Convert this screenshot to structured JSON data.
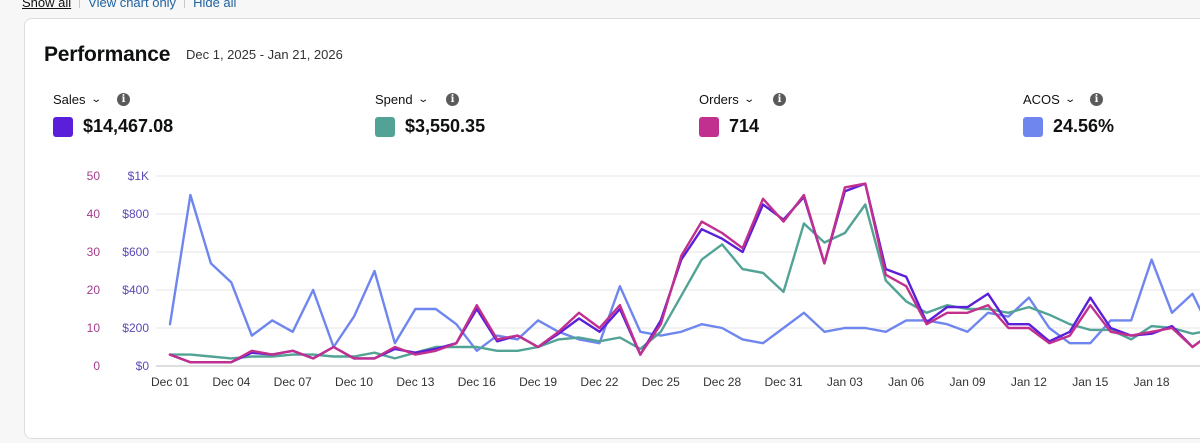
{
  "toolbar": {
    "show_all": "Show all",
    "view_chart_only": "View chart only",
    "hide_all": "Hide all"
  },
  "performance": {
    "title": "Performance",
    "date_range": "Dec 1, 2025 - Jan 21, 2026",
    "metrics": [
      {
        "label": "Sales",
        "value": "$14,467.08",
        "color": "#5c1fd9",
        "icon": "chevron-down-icon"
      },
      {
        "label": "Spend",
        "value": "$3,550.35",
        "color": "#52a396",
        "icon": "chevron-down-icon"
      },
      {
        "label": "Orders",
        "value": "714",
        "color": "#c1308f",
        "icon": "chevron-down-icon"
      },
      {
        "label": "ACOS",
        "value": "24.56%",
        "color": "#6f86ee",
        "icon": "chevron-down-icon"
      }
    ],
    "info_icon": "info-icon"
  },
  "chart_data": {
    "type": "line",
    "x_tick_labels": [
      "Dec 01",
      "Dec 04",
      "Dec 07",
      "Dec 10",
      "Dec 13",
      "Dec 16",
      "Dec 19",
      "Dec 22",
      "Dec 25",
      "Dec 28",
      "Dec 31",
      "Jan 03",
      "Jan 06",
      "Jan 09",
      "Jan 12",
      "Jan 15",
      "Jan 18"
    ],
    "x_start": "2025-12-01",
    "n_points": 52,
    "left_axis": {
      "ticks": [
        "0",
        "10",
        "20",
        "30",
        "40",
        "50"
      ],
      "ylim": [
        0,
        50
      ],
      "series": "Orders"
    },
    "right_axis": {
      "ticks": [
        "$0",
        "$200",
        "$400",
        "$600",
        "$800",
        "$1K"
      ],
      "ylim": [
        0,
        1000
      ],
      "series": "Sales"
    },
    "grid": true,
    "series": [
      {
        "name": "Sales",
        "axis": "right",
        "color": "#5c1fd9",
        "values": [
          60,
          20,
          20,
          20,
          70,
          60,
          80,
          40,
          100,
          40,
          40,
          90,
          70,
          90,
          120,
          300,
          130,
          160,
          100,
          170,
          250,
          180,
          300,
          60,
          240,
          560,
          720,
          670,
          600,
          850,
          770,
          890,
          540,
          920,
          960,
          510,
          470,
          230,
          310,
          310,
          380,
          220,
          220,
          130,
          180,
          360,
          200,
          160,
          170,
          210,
          100,
          180
        ]
      },
      {
        "name": "Spend",
        "axis": "right",
        "color": "#52a396",
        "values": [
          60,
          60,
          50,
          40,
          50,
          50,
          60,
          60,
          50,
          50,
          70,
          40,
          70,
          100,
          100,
          100,
          80,
          80,
          100,
          140,
          150,
          130,
          150,
          90,
          180,
          370,
          560,
          640,
          510,
          490,
          390,
          750,
          650,
          700,
          850,
          450,
          340,
          280,
          320,
          300,
          300,
          280,
          310,
          270,
          220,
          190,
          190,
          140,
          210,
          200,
          170,
          190
        ]
      },
      {
        "name": "Orders",
        "axis": "left",
        "color": "#c1308f",
        "values": [
          3,
          1,
          1,
          1,
          4,
          3,
          4,
          2,
          5,
          2,
          2,
          5,
          3,
          4,
          6,
          16,
          7,
          8,
          5,
          9,
          14,
          10,
          16,
          3,
          11,
          29,
          38,
          35,
          31,
          44,
          38,
          45,
          27,
          47,
          48,
          24,
          21,
          11,
          14,
          14,
          16,
          10,
          10,
          6,
          8,
          16,
          9,
          8,
          9,
          10,
          5,
          9
        ]
      },
      {
        "name": "ACOS",
        "axis": "left",
        "color": "#6f86ee",
        "values": [
          11,
          45,
          27,
          22,
          8,
          12,
          9,
          20,
          5,
          13,
          25,
          6,
          15,
          15,
          11,
          4,
          8,
          7,
          12,
          9,
          7,
          6,
          21,
          9,
          8,
          9,
          11,
          10,
          7,
          6,
          10,
          14,
          9,
          10,
          10,
          9,
          12,
          12,
          11,
          9,
          14,
          13,
          18,
          10,
          6,
          6,
          12,
          12,
          28,
          14,
          19,
          8
        ]
      }
    ]
  }
}
